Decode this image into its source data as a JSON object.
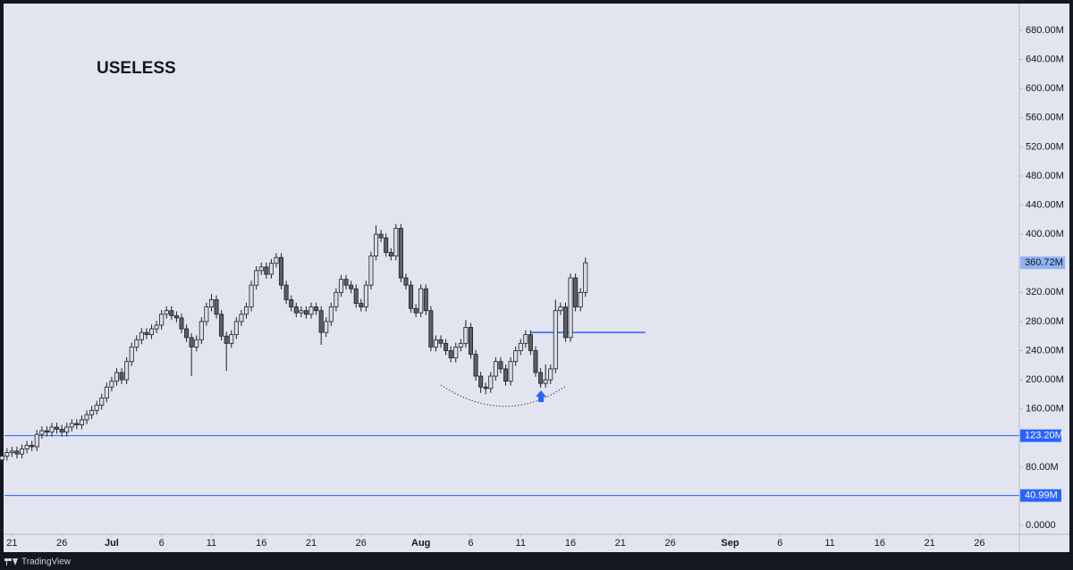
{
  "chart_data": {
    "type": "candlestick",
    "title": "USELESS",
    "x": [
      "06-20 00:00",
      "06-20 12:00",
      "06-21 00:00",
      "06-21 12:00",
      "06-22 00:00",
      "06-22 12:00",
      "06-23 00:00",
      "06-23 12:00",
      "06-24 00:00",
      "06-24 12:00",
      "06-25 00:00",
      "06-25 12:00",
      "06-26 00:00",
      "06-26 12:00",
      "06-27 00:00",
      "06-27 12:00",
      "06-28 00:00",
      "06-28 12:00",
      "06-29 00:00",
      "06-29 12:00",
      "06-30 00:00",
      "06-30 12:00",
      "07-01 00:00",
      "07-01 12:00",
      "07-02 00:00",
      "07-02 12:00",
      "07-03 00:00",
      "07-03 12:00",
      "07-04 00:00",
      "07-04 12:00",
      "07-05 00:00",
      "07-05 12:00",
      "07-06 00:00",
      "07-06 12:00",
      "07-07 00:00",
      "07-07 12:00",
      "07-08 00:00",
      "07-08 12:00",
      "07-09 00:00",
      "07-09 12:00",
      "07-10 00:00",
      "07-10 12:00",
      "07-11 00:00",
      "07-11 12:00",
      "07-12 00:00",
      "07-12 12:00",
      "07-13 00:00",
      "07-13 12:00",
      "07-14 00:00",
      "07-14 12:00",
      "07-15 00:00",
      "07-15 12:00",
      "07-16 00:00",
      "07-16 12:00",
      "07-17 00:00",
      "07-17 12:00",
      "07-18 00:00",
      "07-18 12:00",
      "07-19 00:00",
      "07-19 12:00",
      "07-20 00:00",
      "07-20 12:00",
      "07-21 00:00",
      "07-21 12:00",
      "07-22 00:00",
      "07-22 12:00",
      "07-23 00:00",
      "07-23 12:00",
      "07-24 00:00",
      "07-24 12:00",
      "07-25 00:00",
      "07-25 12:00",
      "07-26 00:00",
      "07-26 12:00",
      "07-27 00:00",
      "07-27 12:00",
      "07-28 00:00",
      "07-28 12:00",
      "07-29 00:00",
      "07-29 12:00",
      "07-30 00:00",
      "07-30 12:00",
      "07-31 00:00",
      "07-31 12:00",
      "08-01 00:00",
      "08-01 12:00",
      "08-02 00:00",
      "08-02 12:00",
      "08-03 00:00",
      "08-03 12:00",
      "08-04 00:00",
      "08-04 12:00",
      "08-05 00:00",
      "08-05 12:00",
      "08-06 00:00",
      "08-06 12:00",
      "08-07 00:00",
      "08-07 12:00",
      "08-08 00:00",
      "08-08 12:00",
      "08-09 00:00",
      "08-09 12:00",
      "08-10 00:00",
      "08-10 12:00",
      "08-11 00:00",
      "08-11 12:00",
      "08-12 00:00",
      "08-12 12:00",
      "08-13 00:00",
      "08-13 12:00",
      "08-14 00:00",
      "08-14 12:00",
      "08-15 00:00",
      "08-15 12:00",
      "08-16 00:00",
      "08-16 12:00",
      "08-17 00:00",
      "08-17 12:00"
    ],
    "open": [
      90,
      95,
      100,
      102,
      98,
      105,
      110,
      108,
      125,
      130,
      128,
      135,
      132,
      128,
      135,
      140,
      138,
      145,
      152,
      158,
      165,
      175,
      190,
      198,
      210,
      200,
      225,
      245,
      255,
      265,
      262,
      270,
      275,
      290,
      295,
      288,
      285,
      270,
      258,
      245,
      255,
      280,
      300,
      310,
      290,
      260,
      250,
      262,
      280,
      290,
      300,
      330,
      350,
      355,
      345,
      360,
      368,
      330,
      310,
      300,
      292,
      295,
      290,
      300,
      295,
      265,
      280,
      300,
      320,
      338,
      330,
      325,
      305,
      300,
      330,
      370,
      400,
      395,
      375,
      370,
      408,
      340,
      330,
      298,
      292,
      325,
      295,
      245,
      255,
      250,
      240,
      230,
      245,
      250,
      272,
      235,
      205,
      190,
      188,
      205,
      225,
      215,
      198,
      225,
      240,
      250,
      262,
      240,
      210,
      195,
      200,
      215,
      295,
      300,
      258,
      340,
      300,
      320
    ],
    "high": [
      101,
      106,
      108,
      108,
      111,
      116,
      116,
      131,
      136,
      136,
      141,
      141,
      138,
      141,
      146,
      146,
      151,
      158,
      164,
      171,
      181,
      196,
      204,
      216,
      216,
      231,
      251,
      261,
      271,
      271,
      276,
      281,
      296,
      301,
      301,
      294,
      291,
      276,
      264,
      261,
      286,
      306,
      318,
      316,
      296,
      266,
      268,
      286,
      296,
      306,
      336,
      356,
      361,
      361,
      366,
      374,
      374,
      336,
      316,
      306,
      301,
      301,
      306,
      306,
      301,
      286,
      306,
      326,
      344,
      344,
      336,
      331,
      311,
      336,
      376,
      412,
      406,
      401,
      381,
      414,
      414,
      346,
      336,
      304,
      331,
      331,
      301,
      261,
      261,
      256,
      246,
      251,
      256,
      282,
      278,
      241,
      211,
      196,
      211,
      231,
      231,
      221,
      231,
      246,
      256,
      268,
      268,
      246,
      216,
      221,
      221,
      310,
      306,
      306,
      346,
      346,
      326,
      368
    ],
    "low": [
      84,
      89,
      94,
      92,
      92,
      99,
      102,
      102,
      119,
      122,
      122,
      126,
      122,
      122,
      129,
      132,
      132,
      139,
      146,
      152,
      159,
      169,
      184,
      192,
      194,
      194,
      219,
      239,
      249,
      256,
      256,
      264,
      269,
      284,
      282,
      279,
      264,
      252,
      205,
      239,
      249,
      274,
      294,
      284,
      254,
      212,
      244,
      256,
      274,
      284,
      294,
      324,
      344,
      339,
      339,
      354,
      324,
      304,
      294,
      286,
      286,
      284,
      284,
      289,
      248,
      259,
      274,
      294,
      314,
      324,
      319,
      299,
      294,
      294,
      324,
      364,
      389,
      369,
      364,
      364,
      334,
      324,
      292,
      286,
      286,
      289,
      239,
      239,
      244,
      234,
      224,
      224,
      239,
      244,
      229,
      199,
      182,
      180,
      182,
      199,
      209,
      192,
      192,
      219,
      234,
      244,
      234,
      204,
      189,
      189,
      194,
      209,
      289,
      252,
      252,
      294,
      294,
      314
    ],
    "close": [
      95,
      100,
      102,
      98,
      105,
      110,
      108,
      125,
      130,
      128,
      135,
      132,
      128,
      135,
      140,
      138,
      145,
      152,
      158,
      165,
      175,
      190,
      198,
      210,
      200,
      225,
      245,
      255,
      265,
      262,
      270,
      275,
      290,
      295,
      288,
      285,
      270,
      258,
      245,
      255,
      280,
      300,
      310,
      290,
      260,
      250,
      262,
      280,
      290,
      300,
      330,
      350,
      355,
      345,
      360,
      368,
      330,
      310,
      300,
      292,
      295,
      290,
      300,
      295,
      265,
      280,
      300,
      320,
      338,
      330,
      325,
      305,
      300,
      330,
      370,
      400,
      395,
      375,
      370,
      408,
      340,
      330,
      298,
      292,
      325,
      295,
      245,
      255,
      250,
      240,
      230,
      245,
      250,
      272,
      235,
      205,
      190,
      188,
      205,
      225,
      215,
      198,
      225,
      240,
      250,
      262,
      240,
      210,
      195,
      200,
      215,
      295,
      300,
      258,
      340,
      300,
      320,
      360.72
    ],
    "up_color": "#d9deec",
    "down_color": "#5d5d62",
    "line_color": "#2962ff",
    "xlim": [
      "06-20 06:00",
      "09-30 00:00"
    ],
    "xticks": [
      {
        "value": "06-21 00:00",
        "label": "21"
      },
      {
        "value": "06-26 00:00",
        "label": "26"
      },
      {
        "value": "07-01 00:00",
        "label": "Jul"
      },
      {
        "value": "07-06 00:00",
        "label": "6"
      },
      {
        "value": "07-11 00:00",
        "label": "11"
      },
      {
        "value": "07-16 00:00",
        "label": "16"
      },
      {
        "value": "07-21 00:00",
        "label": "21"
      },
      {
        "value": "07-26 00:00",
        "label": "26"
      },
      {
        "value": "08-01 00:00",
        "label": "Aug"
      },
      {
        "value": "08-06 00:00",
        "label": "6"
      },
      {
        "value": "08-11 00:00",
        "label": "11"
      },
      {
        "value": "08-16 00:00",
        "label": "16"
      },
      {
        "value": "08-21 00:00",
        "label": "21"
      },
      {
        "value": "08-26 00:00",
        "label": "26"
      },
      {
        "value": "09-01 00:00",
        "label": "Sep"
      },
      {
        "value": "09-06 00:00",
        "label": "6"
      },
      {
        "value": "09-11 00:00",
        "label": "11"
      },
      {
        "value": "09-16 00:00",
        "label": "16"
      },
      {
        "value": "09-21 00:00",
        "label": "21"
      },
      {
        "value": "09-26 00:00",
        "label": "26"
      }
    ],
    "ylim": [
      -14.7,
      709.5
    ],
    "yticks": [
      {
        "value": 0,
        "label": "0.0000"
      },
      {
        "value": 80,
        "label": "80.00M"
      },
      {
        "value": 160,
        "label": "160.00M"
      },
      {
        "value": 200,
        "label": "200.00M"
      },
      {
        "value": 240,
        "label": "240.00M"
      },
      {
        "value": 280,
        "label": "280.00M"
      },
      {
        "value": 320,
        "label": "320.00M"
      },
      {
        "value": 400,
        "label": "400.00M"
      },
      {
        "value": 440,
        "label": "440.00M"
      },
      {
        "value": 480,
        "label": "480.00M"
      },
      {
        "value": 520,
        "label": "520.00M"
      },
      {
        "value": 560,
        "label": "560.00M"
      },
      {
        "value": 600,
        "label": "600.00M"
      },
      {
        "value": 640,
        "label": "640.00M"
      },
      {
        "value": 680,
        "label": "680.00M"
      }
    ],
    "levels": [
      {
        "value": 123.2,
        "label": "123.20M"
      },
      {
        "value": 40.99,
        "label": "40.99M"
      }
    ],
    "segment": {
      "value": 265,
      "x": [
        "08-12 00:00",
        "08-23 12:00"
      ]
    },
    "last_price": {
      "value": 360.72,
      "label": "360.72M"
    }
  },
  "footer": "TradingView"
}
